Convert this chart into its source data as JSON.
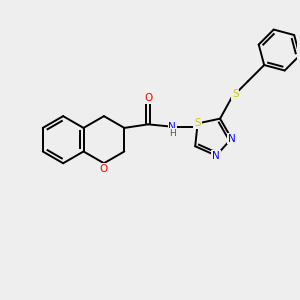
{
  "background_color": "#eeeeee",
  "bond_color": "#000000",
  "atom_colors": {
    "O": "#ff0000",
    "N": "#0000ff",
    "S_thiad": "#cccc00",
    "S_benzyl": "#cccc00",
    "C": "#000000",
    "H": "#555555"
  },
  "bond_lw": 1.4,
  "font_size": 7.5,
  "figsize": [
    3.0,
    3.0
  ],
  "dpi": 100
}
